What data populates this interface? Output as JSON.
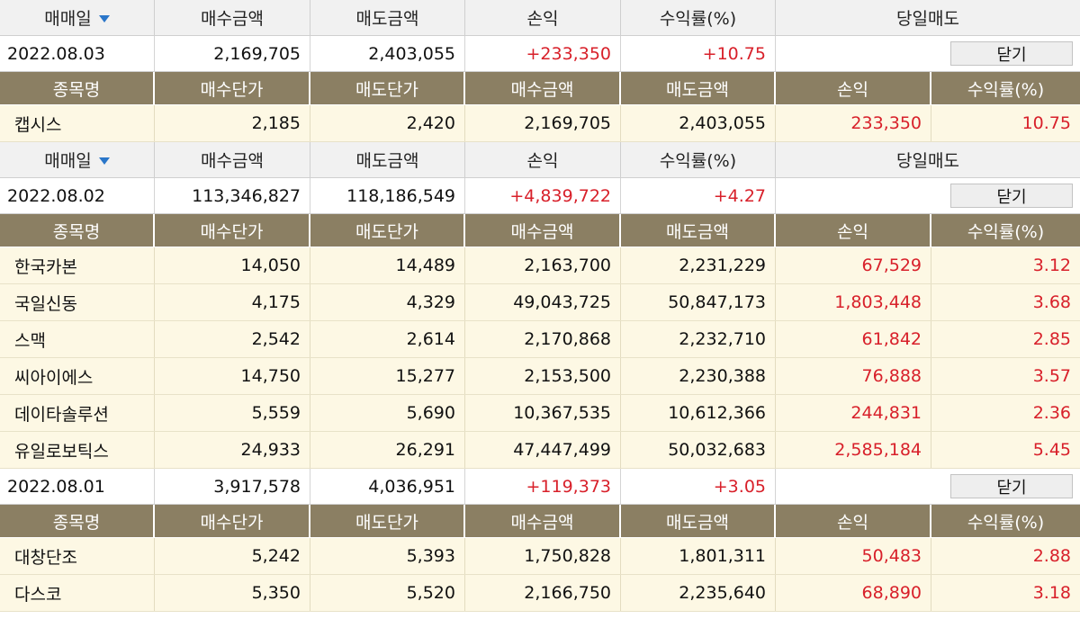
{
  "summary_headers": [
    "매매일",
    "매수금액",
    "매도금액",
    "손익",
    "수익률(%)",
    "당일매도"
  ],
  "detail_headers": [
    "종목명",
    "매수단가",
    "매도단가",
    "매수금액",
    "매도금액",
    "손익",
    "수익률(%)"
  ],
  "close_label": "닫기",
  "days": [
    {
      "date": "2022.08.03",
      "buy_total": "2,169,705",
      "sell_total": "2,403,055",
      "profit": "+233,350",
      "rate": "+10.75",
      "stocks": [
        {
          "name": "캡시스",
          "buy_price": "2,185",
          "sell_price": "2,420",
          "buy_amount": "2,169,705",
          "sell_amount": "2,403,055",
          "profit": "233,350",
          "rate": "10.75"
        }
      ]
    },
    {
      "date": "2022.08.02",
      "buy_total": "113,346,827",
      "sell_total": "118,186,549",
      "profit": "+4,839,722",
      "rate": "+4.27",
      "stocks": [
        {
          "name": "한국카본",
          "buy_price": "14,050",
          "sell_price": "14,489",
          "buy_amount": "2,163,700",
          "sell_amount": "2,231,229",
          "profit": "67,529",
          "rate": "3.12"
        },
        {
          "name": "국일신동",
          "buy_price": "4,175",
          "sell_price": "4,329",
          "buy_amount": "49,043,725",
          "sell_amount": "50,847,173",
          "profit": "1,803,448",
          "rate": "3.68"
        },
        {
          "name": "스맥",
          "buy_price": "2,542",
          "sell_price": "2,614",
          "buy_amount": "2,170,868",
          "sell_amount": "2,232,710",
          "profit": "61,842",
          "rate": "2.85"
        },
        {
          "name": "씨아이에스",
          "buy_price": "14,750",
          "sell_price": "15,277",
          "buy_amount": "2,153,500",
          "sell_amount": "2,230,388",
          "profit": "76,888",
          "rate": "3.57"
        },
        {
          "name": "데이타솔루션",
          "buy_price": "5,559",
          "sell_price": "5,690",
          "buy_amount": "10,367,535",
          "sell_amount": "10,612,366",
          "profit": "244,831",
          "rate": "2.36"
        },
        {
          "name": "유일로보틱스",
          "buy_price": "24,933",
          "sell_price": "26,291",
          "buy_amount": "47,447,499",
          "sell_amount": "50,032,683",
          "profit": "2,585,184",
          "rate": "5.45"
        }
      ]
    },
    {
      "date": "2022.08.01",
      "buy_total": "3,917,578",
      "sell_total": "4,036,951",
      "profit": "+119,373",
      "rate": "+3.05",
      "stocks": [
        {
          "name": "대창단조",
          "buy_price": "5,242",
          "sell_price": "5,393",
          "buy_amount": "1,750,828",
          "sell_amount": "1,801,311",
          "profit": "50,483",
          "rate": "2.88"
        },
        {
          "name": "다스코",
          "buy_price": "5,350",
          "sell_price": "5,520",
          "buy_amount": "2,166,750",
          "sell_amount": "2,235,640",
          "profit": "68,890",
          "rate": "3.18"
        }
      ]
    }
  ]
}
